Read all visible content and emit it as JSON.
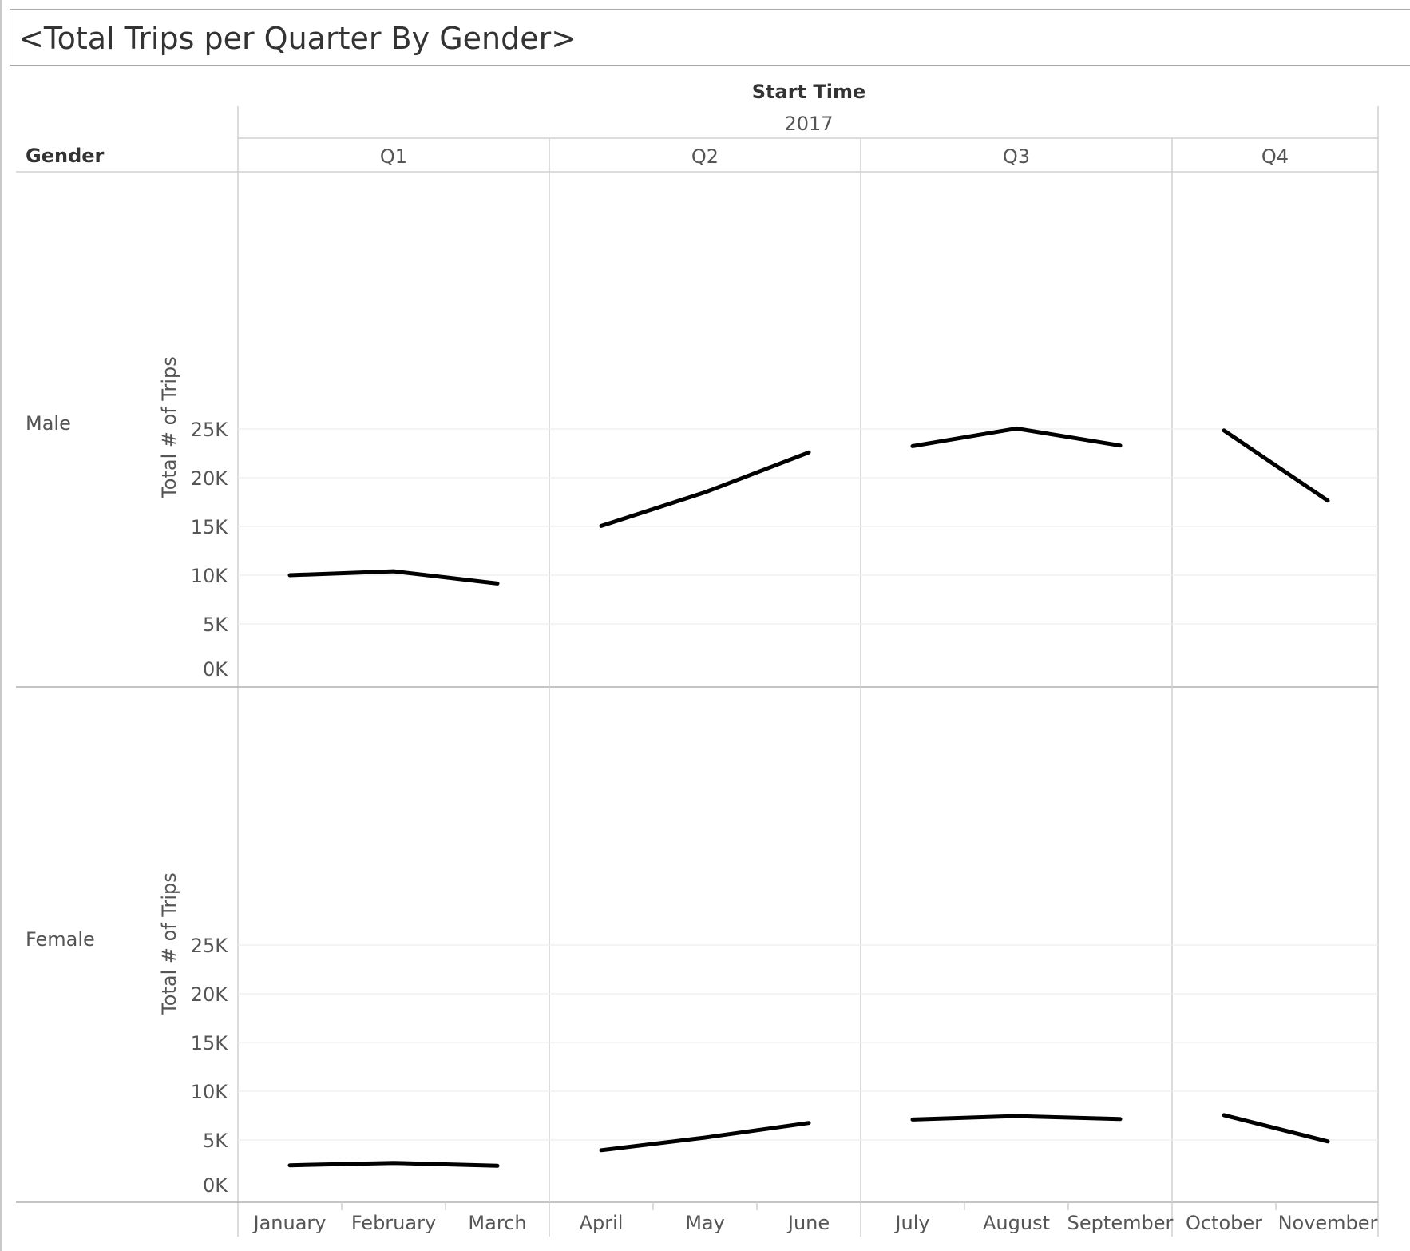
{
  "title": "<Total Trips per Quarter By Gender>",
  "header": {
    "column_field": "Start Time",
    "year": "2017",
    "row_field": "Gender"
  },
  "colors": {
    "line": "#000000",
    "grid": "#eeeeee",
    "divider": "#d0d0d0",
    "axis": "#b0b0b0"
  },
  "chart_data": {
    "type": "line",
    "x_field": "Start Time (Month)",
    "y_label": "Total # of Trips",
    "ylim": [
      0,
      25000
    ],
    "y_ticks": [
      "0K",
      "5K",
      "10K",
      "15K",
      "20K",
      "25K"
    ],
    "quarters": [
      {
        "label": "Q1",
        "months": [
          "January",
          "February",
          "March"
        ]
      },
      {
        "label": "Q2",
        "months": [
          "April",
          "May",
          "June"
        ]
      },
      {
        "label": "Q3",
        "months": [
          "July",
          "August",
          "September"
        ]
      },
      {
        "label": "Q4",
        "months": [
          "October",
          "November"
        ]
      }
    ],
    "panels": [
      {
        "label": "Male",
        "values": [
          10000,
          10400,
          9150,
          15050,
          18500,
          22600,
          23250,
          25050,
          23300,
          24850,
          17650
        ]
      },
      {
        "label": "Female",
        "values": [
          2400,
          2650,
          2350,
          3950,
          5250,
          6750,
          7100,
          7450,
          7150,
          7550,
          4850
        ]
      }
    ]
  }
}
